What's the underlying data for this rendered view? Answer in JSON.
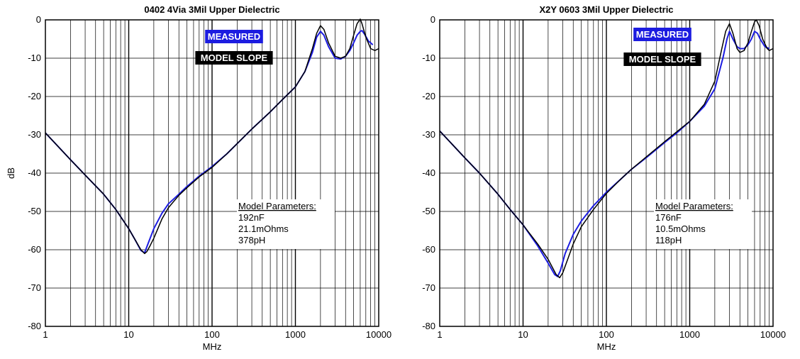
{
  "chart_data": [
    {
      "type": "line",
      "title": "0402 4Via 3Mil Upper Dielectric",
      "xlabel": "MHz",
      "ylabel": "dB",
      "xscale": "log",
      "xlim": [
        1,
        10000
      ],
      "ylim": [
        -80,
        0
      ],
      "xticks": [
        1,
        10,
        100,
        1000,
        10000
      ],
      "xtick_labels": [
        "1",
        "10",
        "100",
        "1000",
        "10000"
      ],
      "yticks": [
        0,
        -10,
        -20,
        -30,
        -40,
        -50,
        -60,
        -70,
        -80
      ],
      "ytick_labels": [
        "0",
        "-10",
        "-20",
        "-30",
        "-40",
        "-50",
        "-60",
        "-70",
        "-80"
      ],
      "grid": true,
      "legend": [
        "MEASURED",
        "MODEL SLOPE"
      ],
      "legend_position": "top-center",
      "annotation": {
        "heading": "Model Parameters:",
        "lines": [
          "192nF",
          "21.1mOhms",
          "378pH"
        ]
      },
      "series": [
        {
          "name": "MEASURED",
          "color": "#1c1ce0",
          "x": [
            1,
            2,
            3,
            5,
            7,
            10,
            12,
            14,
            15.5,
            17,
            20,
            25,
            30,
            40,
            50,
            70,
            100,
            150,
            200,
            300,
            500,
            700,
            1000,
            1300,
            1600,
            1800,
            2000,
            2200,
            2500,
            3000,
            3500,
            4000,
            4500,
            5000,
            5500,
            6000,
            6300,
            6800,
            7500,
            8500
          ],
          "y": [
            -29.5,
            -36.5,
            -40.5,
            -45.5,
            -49.5,
            -54.5,
            -57.5,
            -60.2,
            -60.8,
            -58.5,
            -54.5,
            -50.5,
            -48,
            -45.5,
            -43.5,
            -40.8,
            -38.3,
            -35,
            -32.3,
            -28.5,
            -24,
            -20.8,
            -17.5,
            -13.5,
            -8.5,
            -4.5,
            -3,
            -4,
            -7,
            -10,
            -10.2,
            -9.5,
            -8,
            -6,
            -4,
            -3,
            -2.8,
            -3.8,
            -5.5,
            -6.5
          ]
        },
        {
          "name": "MODEL SLOPE",
          "color": "#000000",
          "x": [
            1,
            2,
            3,
            5,
            7,
            10,
            12,
            14,
            15.5,
            16.5,
            18,
            20,
            25,
            30,
            40,
            50,
            70,
            100,
            150,
            200,
            300,
            500,
            700,
            1000,
            1300,
            1600,
            1800,
            2000,
            2200,
            2500,
            3000,
            3500,
            4000,
            4500,
            5000,
            5500,
            6000,
            6300,
            7000,
            8000,
            9000,
            10000
          ],
          "y": [
            -29.5,
            -36.5,
            -40.5,
            -45.5,
            -49.5,
            -54.5,
            -57.5,
            -60,
            -61,
            -60.5,
            -59,
            -57,
            -52,
            -49,
            -45.8,
            -43.8,
            -41,
            -38.5,
            -35,
            -32.3,
            -28.5,
            -24,
            -20.8,
            -17.5,
            -13.5,
            -7.5,
            -3.5,
            -1.5,
            -2.5,
            -6,
            -9.5,
            -10,
            -9.5,
            -7.5,
            -4,
            -1,
            0.2,
            -1,
            -4.5,
            -7.5,
            -8,
            -7.5
          ]
        }
      ]
    },
    {
      "type": "line",
      "title": "X2Y 0603 3Mil Upper Dielectric",
      "xlabel": "MHz",
      "ylabel": "",
      "xscale": "log",
      "xlim": [
        1,
        10000
      ],
      "ylim": [
        -80,
        0
      ],
      "xticks": [
        1,
        10,
        100,
        1000,
        10000
      ],
      "xtick_labels": [
        "1",
        "10",
        "100",
        "1000",
        "10000"
      ],
      "yticks": [
        0,
        -10,
        -20,
        -30,
        -40,
        -50,
        -60,
        -70,
        -80
      ],
      "ytick_labels": [
        "0",
        "-10",
        "-20",
        "-30",
        "-40",
        "-50",
        "-60",
        "-70",
        "-80"
      ],
      "grid": true,
      "legend": [
        "MEASURED",
        "MODEL SLOPE"
      ],
      "legend_position": "top-center",
      "annotation": {
        "heading": "Model Parameters:",
        "lines": [
          "176nF",
          "10.5mOhms",
          "118pH"
        ]
      },
      "series": [
        {
          "name": "MEASURED",
          "color": "#1c1ce0",
          "x": [
            1,
            2,
            3,
            5,
            7,
            10,
            15,
            20,
            24,
            26,
            28,
            32,
            40,
            50,
            70,
            100,
            150,
            200,
            300,
            500,
            700,
            1000,
            1500,
            2000,
            2500,
            2800,
            3000,
            3300,
            3700,
            4000,
            4500,
            5000,
            5500,
            6000,
            6500,
            7000,
            8000,
            9000
          ],
          "y": [
            -29,
            -36,
            -40,
            -45.5,
            -49.5,
            -53.5,
            -59,
            -63.5,
            -66.5,
            -67,
            -65.5,
            -61,
            -56,
            -52.5,
            -48.5,
            -45,
            -41.5,
            -39,
            -36,
            -32,
            -29.5,
            -26.5,
            -22.5,
            -18,
            -10,
            -5,
            -3,
            -5,
            -7,
            -7.5,
            -7.5,
            -6.5,
            -5,
            -3,
            -3.5,
            -5,
            -7,
            -7.5
          ]
        },
        {
          "name": "MODEL SLOPE",
          "color": "#000000",
          "x": [
            1,
            2,
            3,
            5,
            7,
            10,
            15,
            20,
            25,
            27.5,
            30,
            35,
            40,
            50,
            70,
            100,
            150,
            200,
            300,
            500,
            700,
            1000,
            1500,
            2000,
            2400,
            2700,
            3000,
            3300,
            3700,
            4000,
            4500,
            5000,
            5500,
            6000,
            6300,
            6800,
            7500,
            8500,
            9000,
            10000
          ],
          "y": [
            -29,
            -36,
            -40,
            -45.5,
            -49.5,
            -53.5,
            -58.5,
            -62.5,
            -66.5,
            -67.3,
            -66,
            -62,
            -58.5,
            -54,
            -49.5,
            -45.3,
            -41.5,
            -39,
            -35.8,
            -31.8,
            -29.2,
            -26.5,
            -22,
            -16,
            -8,
            -3,
            -1,
            -3.5,
            -7.5,
            -8.5,
            -8,
            -6,
            -3,
            -0.5,
            0,
            -1.5,
            -5,
            -7.5,
            -8,
            -7.5
          ]
        }
      ]
    }
  ]
}
